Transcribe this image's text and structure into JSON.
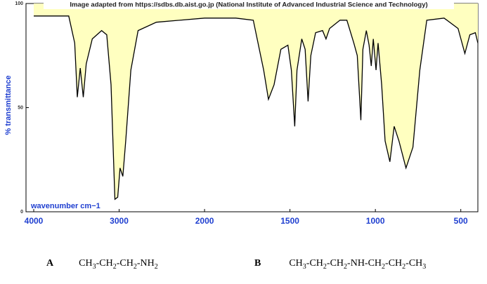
{
  "chart_data": {
    "type": "line",
    "title": "Image adapted from https://sdbs.db.aist.go.jp (National Institute of Advanced Industrial Science and Technology)",
    "ylabel": "% transmittance",
    "xlabel": "wavenumber cm−1",
    "xlim": [
      4000,
      400
    ],
    "ylim": [
      0,
      100
    ],
    "xticks": [
      4000,
      3000,
      2000,
      1500,
      1000,
      500
    ],
    "yticks": [
      0,
      50,
      100
    ],
    "series": [
      {
        "color": "#000000",
        "fill": "#ffffc0",
        "x": [
          4000,
          3590,
          3520,
          3490,
          3455,
          3420,
          3385,
          3315,
          3205,
          3145,
          3095,
          3050,
          3017,
          2990,
          2957,
          2923,
          2863,
          2778,
          2564,
          2000,
          1817,
          1715,
          1654,
          1626,
          1593,
          1553,
          1512,
          1492,
          1472,
          1459,
          1431,
          1411,
          1394,
          1378,
          1350,
          1309,
          1289,
          1268,
          1207,
          1167,
          1126,
          1106,
          1085,
          1073,
          1053,
          1037,
          1024,
          1012,
          996,
          984,
          963,
          943,
          915,
          890,
          862,
          821,
          780,
          740,
          699,
          598,
          516,
          476,
          447,
          415,
          400
        ],
        "values": [
          94,
          94,
          81,
          55,
          69,
          55,
          71,
          83,
          87,
          85,
          61,
          6,
          7,
          21,
          17,
          34,
          68,
          87,
          91,
          93,
          93,
          92,
          68,
          54,
          61,
          78,
          80,
          68,
          41,
          68,
          83,
          78,
          53,
          75,
          86,
          87,
          83,
          88,
          92,
          92,
          81,
          75,
          44,
          78,
          87,
          80,
          70,
          83,
          68,
          81,
          61,
          34,
          24,
          41,
          34,
          21,
          31,
          68,
          92,
          93,
          88,
          76,
          85,
          86,
          81
        ]
      }
    ]
  },
  "options": [
    {
      "letter": "A",
      "formula": "CH3-CH2-CH2-NH2"
    },
    {
      "letter": "B",
      "formula": "CH3-CH2-CH2-NH-CH2-CH2-CH3"
    }
  ]
}
